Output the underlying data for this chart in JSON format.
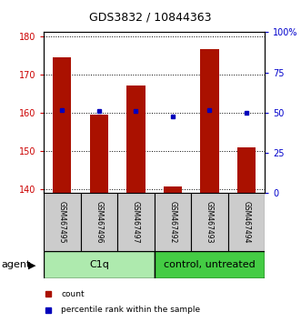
{
  "title": "GDS3832 / 10844363",
  "samples": [
    "GSM467495",
    "GSM467496",
    "GSM467497",
    "GSM467492",
    "GSM467493",
    "GSM467494"
  ],
  "counts": [
    174.5,
    159.5,
    167.0,
    140.8,
    176.5,
    151.0
  ],
  "percentile_ranks": [
    51.5,
    51.0,
    51.0,
    47.5,
    51.5,
    50.0
  ],
  "ylim_left": [
    139,
    181
  ],
  "ylim_right": [
    0,
    100
  ],
  "yticks_left": [
    140,
    150,
    160,
    170,
    180
  ],
  "yticks_right": [
    0,
    25,
    50,
    75,
    100
  ],
  "ytick_labels_right": [
    "0",
    "25",
    "50",
    "75",
    "100%"
  ],
  "groups": [
    {
      "label": "C1q",
      "start": 0,
      "end": 3,
      "color": "#aeeaae"
    },
    {
      "label": "control, untreated",
      "start": 3,
      "end": 6,
      "color": "#44cc44"
    }
  ],
  "bar_color": "#aa1100",
  "dot_color": "#0000bb",
  "bar_width": 0.5,
  "left_tick_color": "#cc0000",
  "right_tick_color": "#0000cc",
  "sample_box_color": "#cccccc",
  "title_fontsize": 9,
  "tick_fontsize": 7,
  "sample_fontsize": 5.5,
  "group_fontsize": 8,
  "legend_fontsize": 6.5,
  "agent_fontsize": 8
}
